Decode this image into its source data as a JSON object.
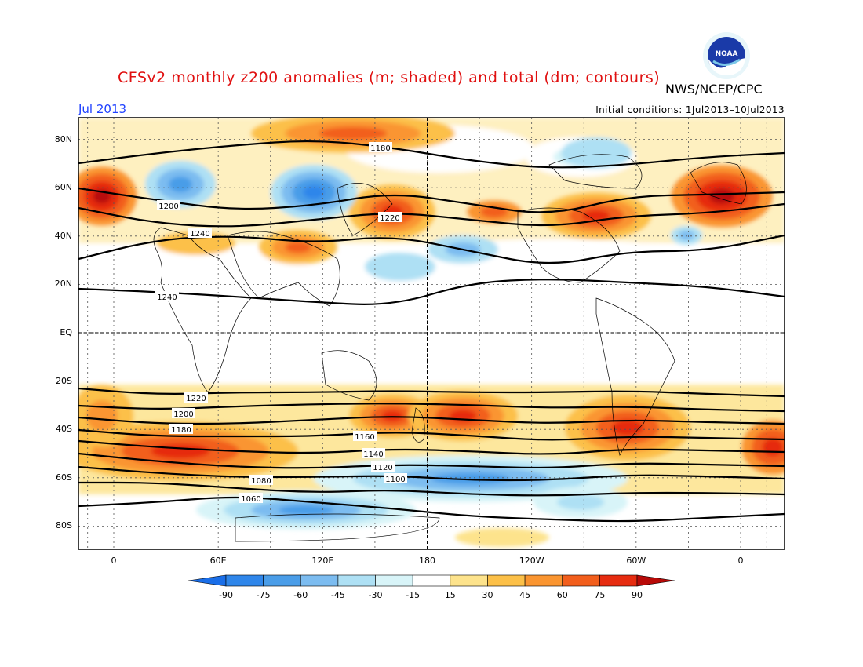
{
  "header": {
    "title": "CFSv2 monthly z200 anomalies (m; shaded) and total (dm; contours)",
    "agency": "NWS/NCEP/CPC",
    "month": "Jul 2013",
    "initial_conditions": "Initial conditions: 1Jul2013–10Jul2013",
    "logo_text": "NOAA"
  },
  "axes": {
    "lat_labels": [
      "80N",
      "60N",
      "40N",
      "20N",
      "EQ",
      "20S",
      "40S",
      "60S",
      "80S"
    ],
    "lat_values": [
      80,
      60,
      40,
      20,
      0,
      -20,
      -40,
      -60,
      -80
    ],
    "lon_labels": [
      "0",
      "60E",
      "120E",
      "180",
      "120W",
      "60W",
      "0"
    ],
    "lon_values": [
      0,
      60,
      120,
      180,
      240,
      300,
      360
    ]
  },
  "colorbar": {
    "labels": [
      "-90",
      "-75",
      "-60",
      "-45",
      "-30",
      "-15",
      "15",
      "30",
      "45",
      "60",
      "75",
      "90"
    ],
    "colors": [
      "#1a6ee8",
      "#2f86ea",
      "#4a9de8",
      "#7cbcf0",
      "#aee0f4",
      "#d8f4f8",
      "#ffffff",
      "#fde38c",
      "#fcc048",
      "#fa9530",
      "#f25e1c",
      "#e62c10",
      "#b80a08"
    ]
  },
  "map_contours": [
    {
      "label": "1180"
    },
    {
      "label": "1200"
    },
    {
      "label": "1220"
    },
    {
      "label": "1240"
    },
    {
      "label": "1160"
    },
    {
      "label": "1140"
    },
    {
      "label": "1120"
    },
    {
      "label": "1100"
    },
    {
      "label": "1080"
    },
    {
      "label": "1060"
    }
  ]
}
